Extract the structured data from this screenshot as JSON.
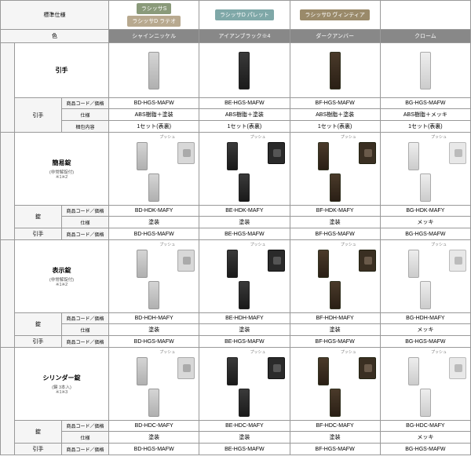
{
  "header": {
    "spec_label": "標準仕様",
    "color_label": "色",
    "series": {
      "s": "ラシッサS",
      "lateo": "ラシッサD ラテオ",
      "palette": "ラシッサD パレット",
      "vintia": "ラシッサD ヴィンティア"
    },
    "colors": [
      "シャインニッケル",
      "アイアンブラック※4",
      "ダークアンバー",
      "クローム"
    ]
  },
  "attr_labels": {
    "code": "商品コード／価格",
    "spec": "仕様",
    "contents": "梱包内容"
  },
  "push_label": "プッシュ",
  "sections": [
    {
      "key": "hikite",
      "title": "引手",
      "sub": "",
      "rowspan_label": [
        "引手"
      ],
      "rows": [
        {
          "label": "商品コード／価格",
          "cells": [
            "BD-HGS-MAFW",
            "BE-HGS-MAFW",
            "BF-HGS-MAFW",
            "BG-HGS-MAFW"
          ]
        },
        {
          "label": "仕様",
          "cells": [
            "ABS樹脂＋塗装",
            "ABS樹脂＋塗装",
            "ABS樹脂＋塗装",
            "ABS樹脂＋メッキ"
          ]
        },
        {
          "label": "梱包内容",
          "cells": [
            "1セット(表裏)",
            "1セット(表裏)",
            "1セット(表裏)",
            "1セット(表裏)"
          ]
        }
      ],
      "has_push": false
    },
    {
      "key": "kani",
      "title": "簡易錠",
      "sub": "(非常解錠付)\n※1※2",
      "rowspan_label": [
        "錠",
        "引手"
      ],
      "rows": [
        {
          "label": "商品コード／価格",
          "cells": [
            "BD-HDK-MAFY",
            "BE-HDK-MAFY",
            "BF-HDK-MAFY",
            "BG-HDK-MAFY"
          ]
        },
        {
          "label": "仕様",
          "cells": [
            "塗装",
            "塗装",
            "塗装",
            "メッキ"
          ]
        },
        {
          "label": "商品コード／価格",
          "cells": [
            "BD-HGS-MAFW",
            "BE-HGS-MAFW",
            "BF-HGS-MAFW",
            "BG-HGS-MAFW"
          ]
        }
      ],
      "has_push": true
    },
    {
      "key": "hyoji",
      "title": "表示錠",
      "sub": "(非常解錠付)\n※1※2",
      "rowspan_label": [
        "錠",
        "引手"
      ],
      "rows": [
        {
          "label": "商品コード／価格",
          "cells": [
            "BD-HDH-MAFY",
            "BE-HDH-MAFY",
            "BF-HDH-MAFY",
            "BG-HDH-MAFY"
          ]
        },
        {
          "label": "仕様",
          "cells": [
            "塗装",
            "塗装",
            "塗装",
            "メッキ"
          ]
        },
        {
          "label": "商品コード／価格",
          "cells": [
            "BD-HGS-MAFW",
            "BE-HGS-MAFW",
            "BF-HGS-MAFW",
            "BG-HGS-MAFW"
          ]
        }
      ],
      "has_push": true
    },
    {
      "key": "cylinder",
      "title": "シリンダー錠",
      "sub": "(鍵 3本入)\n※1※3",
      "rowspan_label": [
        "錠",
        "引手"
      ],
      "rows": [
        {
          "label": "商品コード／価格",
          "cells": [
            "BD-HDC-MAFY",
            "BE-HDC-MAFY",
            "BF-HDC-MAFY",
            "BG-HDC-MAFY"
          ]
        },
        {
          "label": "仕様",
          "cells": [
            "塗装",
            "塗装",
            "塗装",
            "メッキ"
          ]
        },
        {
          "label": "商品コード／価格",
          "cells": [
            "BD-HGS-MAFW",
            "BE-HGS-MAFW",
            "BF-HGS-MAFW",
            "BG-HGS-MAFW"
          ]
        }
      ],
      "has_push": true
    }
  ],
  "color_classes": [
    "nickel",
    "black",
    "amber",
    "chrome"
  ],
  "styling": {
    "colors": {
      "nickel": "#c0c0c0",
      "black": "#2a2a2a",
      "amber": "#3a2f22",
      "chrome": "#dcdcdc",
      "tag_s": "#8a9a7a",
      "tag_lateo": "#b8a98f",
      "tag_palette": "#7fa8a8",
      "tag_vintia": "#9a8a6a",
      "col_header_bg": "#888888"
    },
    "font_size_base": 7,
    "font_size_sub": 5.5
  }
}
